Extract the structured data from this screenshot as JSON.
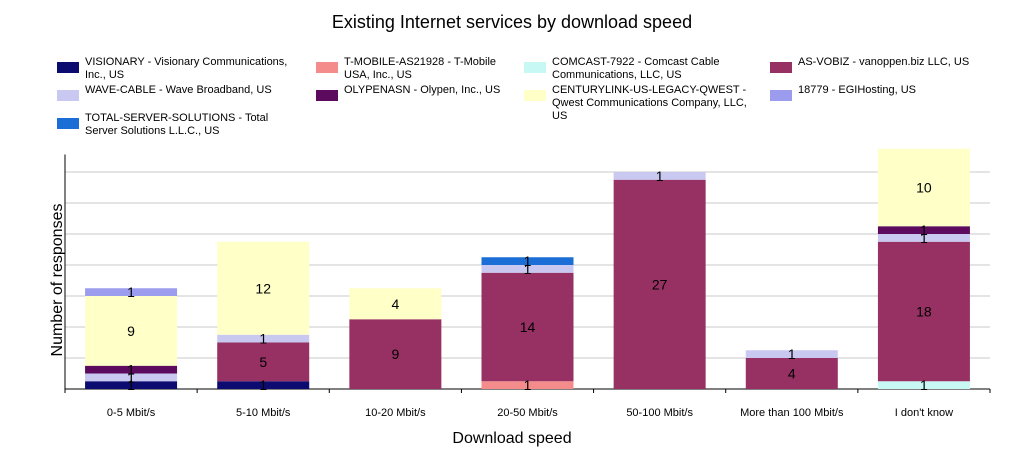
{
  "chart_data": {
    "type": "bar",
    "stacked": true,
    "title": "Existing Internet services by download speed",
    "xlabel": "Download speed",
    "ylabel": "Number of responses",
    "ylim": [
      0,
      30
    ],
    "grid": true,
    "legend_placement": "top",
    "categories": [
      "0-5 Mbit/s",
      "5-10 Mbit/s",
      "10-20 Mbit/s",
      "20-50 Mbit/s",
      "50-100 Mbit/s",
      "More than 100 Mbit/s",
      "I don't know"
    ],
    "series": [
      {
        "name": "VISIONARY - Visionary Communications, Inc., US",
        "color": "#0b0b70",
        "values": [
          1,
          1,
          0,
          0,
          0,
          0,
          0
        ]
      },
      {
        "name": "T-MOBILE-AS21928 - T-Mobile USA, Inc., US",
        "color": "#f48c8c",
        "values": [
          0,
          0,
          0,
          1,
          0,
          0,
          0
        ]
      },
      {
        "name": "COMCAST-7922 - Comcast Cable Communications, LLC, US",
        "color": "#c8f8f4",
        "values": [
          0,
          0,
          0,
          0,
          0,
          0,
          1
        ]
      },
      {
        "name": "AS-VOBIZ - vanoppen.biz LLC, US",
        "color": "#973163",
        "values": [
          0,
          5,
          9,
          14,
          27,
          4,
          18
        ]
      },
      {
        "name": "WAVE-CABLE - Wave Broadband, US",
        "color": "#c8c8f0",
        "values": [
          1,
          1,
          0,
          1,
          1,
          1,
          1
        ]
      },
      {
        "name": "OLYPENASN - Olypen, Inc., US",
        "color": "#5b0a5e",
        "values": [
          1,
          0,
          0,
          0,
          0,
          0,
          1
        ]
      },
      {
        "name": "CENTURYLINK-US-LEGACY-QWEST - Qwest Communications Company, LLC, US",
        "color": "#ffffc8",
        "values": [
          9,
          12,
          4,
          0,
          0,
          0,
          10
        ]
      },
      {
        "name": "18779 - EGIHosting, US",
        "color": "#9c9cee",
        "values": [
          1,
          0,
          0,
          0,
          0,
          0,
          0
        ]
      },
      {
        "name": "TOTAL-SERVER-SOLUTIONS - Total Server Solutions L.L.C., US",
        "color": "#1a6ed6",
        "values": [
          0,
          0,
          0,
          1,
          0,
          0,
          0
        ]
      }
    ]
  }
}
